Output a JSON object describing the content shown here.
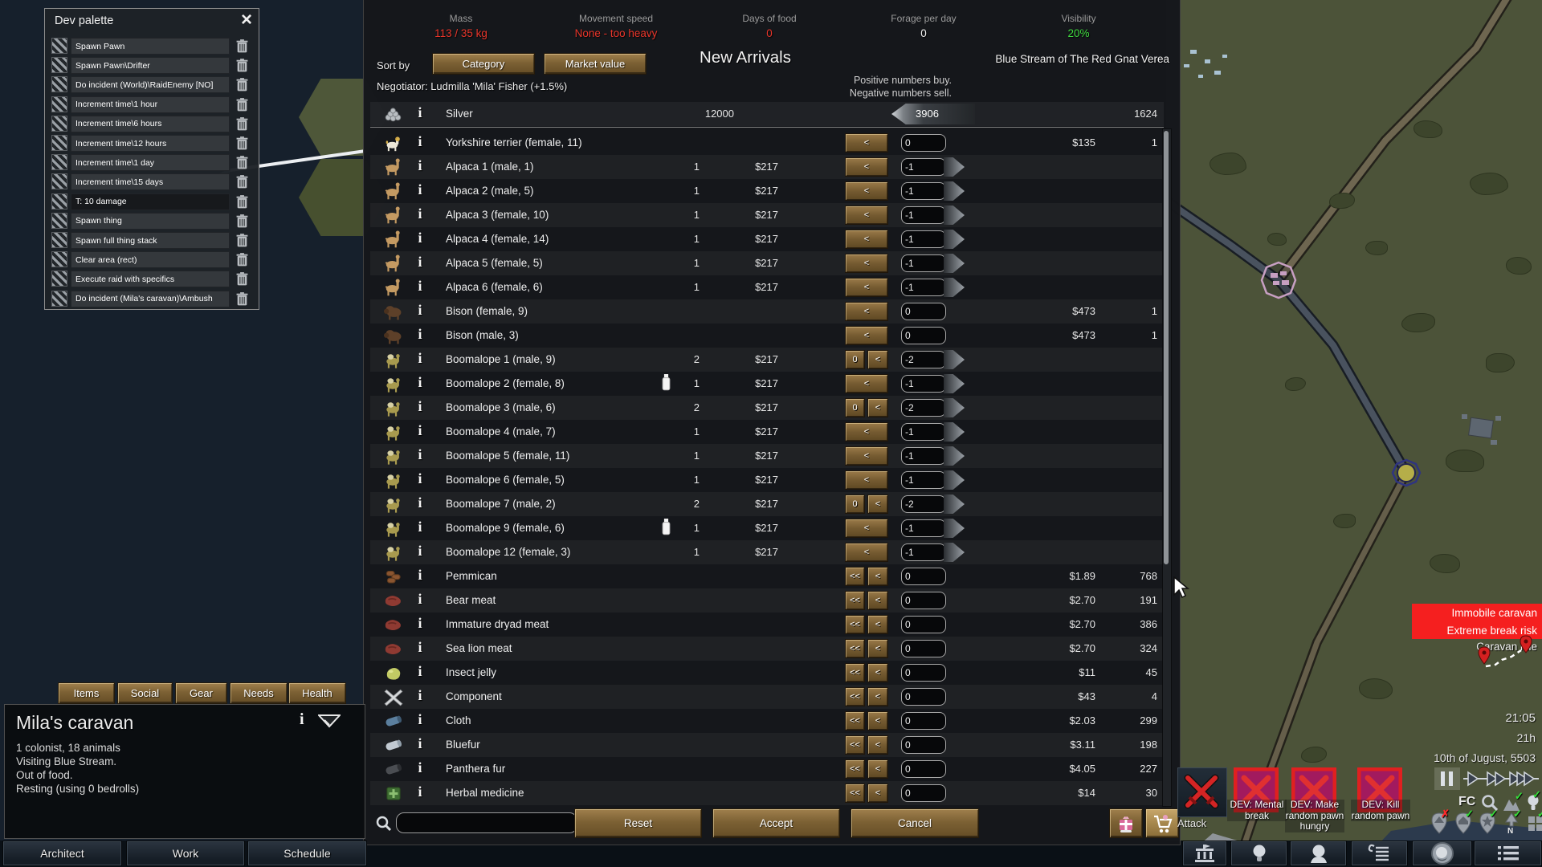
{
  "colors": {
    "red": "#e8352a",
    "green": "#3fd93f",
    "white": "#f0f0f0",
    "accent_brown": "#8a6d42",
    "devx_bg": "#a21a5e",
    "alert_red": "#f51f1f"
  },
  "dev_palette": {
    "title": "Dev palette",
    "close": "×",
    "items": [
      {
        "label": "Spawn Pawn",
        "dark": false
      },
      {
        "label": "Spawn Pawn\\Drifter",
        "dark": false
      },
      {
        "label": "Do incident (World)\\RaidEnemy [NO]",
        "dark": false
      },
      {
        "label": "Increment time\\1 hour",
        "dark": false
      },
      {
        "label": "Increment time\\6 hours",
        "dark": false
      },
      {
        "label": "Increment time\\12 hours",
        "dark": false
      },
      {
        "label": "Increment time\\1 day",
        "dark": false
      },
      {
        "label": "Increment time\\15 days",
        "dark": false
      },
      {
        "label": "T: 10 damage",
        "dark": true
      },
      {
        "label": "Spawn thing",
        "dark": false
      },
      {
        "label": "Spawn full thing stack",
        "dark": false
      },
      {
        "label": "Clear area (rect)",
        "dark": false
      },
      {
        "label": "Execute raid with specifics",
        "dark": false
      },
      {
        "label": "Do incident (Mila's caravan)\\Ambush",
        "dark": false
      }
    ]
  },
  "trade": {
    "stats": [
      {
        "label": "Mass",
        "value": "113 / 35 kg",
        "color": "red"
      },
      {
        "label": "Movement speed",
        "value": "None - too heavy",
        "color": "red"
      },
      {
        "label": "Days of food",
        "value": "0",
        "color": "red"
      },
      {
        "label": "Forage per day",
        "value": "0",
        "color": "white"
      },
      {
        "label": "Visibility",
        "value": "20%",
        "color": "green"
      }
    ],
    "sort_label": "Sort by",
    "sort_buttons": [
      "Category",
      "Market value"
    ],
    "title": "New Arrivals",
    "negotiator": "Negotiator: Ludmilla 'Mila' Fisher (+1.5%)",
    "hint_line1": "Positive numbers buy.",
    "hint_line2": "Negative numbers sell.",
    "faction": "Blue Stream of The Red Gnat Verea",
    "silver": {
      "name": "Silver",
      "stock": "12000",
      "amount": "3906",
      "owned": "1624"
    },
    "rows": [
      {
        "icon": "dog",
        "name": "Yorkshire terrier (female, 11)",
        "qty": "",
        "price": "",
        "buttons": [
          "<"
        ],
        "amount": "0",
        "arrow": false,
        "rprice": "$135",
        "rqty": "1",
        "milk": false
      },
      {
        "icon": "alpaca",
        "name": "Alpaca 1 (male, 1)",
        "qty": "1",
        "price": "$217",
        "buttons": [
          "<"
        ],
        "amount": "-1",
        "arrow": true,
        "rprice": "",
        "rqty": "",
        "milk": false
      },
      {
        "icon": "alpaca",
        "name": "Alpaca 2 (male, 5)",
        "qty": "1",
        "price": "$217",
        "buttons": [
          "<"
        ],
        "amount": "-1",
        "arrow": true,
        "rprice": "",
        "rqty": "",
        "milk": false
      },
      {
        "icon": "alpaca",
        "name": "Alpaca 3 (female, 10)",
        "qty": "1",
        "price": "$217",
        "buttons": [
          "<"
        ],
        "amount": "-1",
        "arrow": true,
        "rprice": "",
        "rqty": "",
        "milk": false
      },
      {
        "icon": "alpaca",
        "name": "Alpaca 4 (female, 14)",
        "qty": "1",
        "price": "$217",
        "buttons": [
          "<"
        ],
        "amount": "-1",
        "arrow": true,
        "rprice": "",
        "rqty": "",
        "milk": false
      },
      {
        "icon": "alpaca",
        "name": "Alpaca 5 (female, 5)",
        "qty": "1",
        "price": "$217",
        "buttons": [
          "<"
        ],
        "amount": "-1",
        "arrow": true,
        "rprice": "",
        "rqty": "",
        "milk": false
      },
      {
        "icon": "alpaca",
        "name": "Alpaca 6 (female, 6)",
        "qty": "1",
        "price": "$217",
        "buttons": [
          "<"
        ],
        "amount": "-1",
        "arrow": true,
        "rprice": "",
        "rqty": "",
        "milk": false
      },
      {
        "icon": "bison",
        "name": "Bison (female, 9)",
        "qty": "",
        "price": "",
        "buttons": [
          "<"
        ],
        "amount": "0",
        "arrow": false,
        "rprice": "$473",
        "rqty": "1",
        "milk": false
      },
      {
        "icon": "bison",
        "name": "Bison (male, 3)",
        "qty": "",
        "price": "",
        "buttons": [
          "<"
        ],
        "amount": "0",
        "arrow": false,
        "rprice": "$473",
        "rqty": "1",
        "milk": false
      },
      {
        "icon": "boomalope",
        "name": "Boomalope 1 (male, 9)",
        "qty": "2",
        "price": "$217",
        "buttons": [
          "0",
          "<"
        ],
        "amount": "-2",
        "arrow": true,
        "rprice": "",
        "rqty": "",
        "milk": false
      },
      {
        "icon": "boomalope",
        "name": "Boomalope 2 (female, 8)",
        "qty": "1",
        "price": "$217",
        "buttons": [
          "<"
        ],
        "amount": "-1",
        "arrow": true,
        "rprice": "",
        "rqty": "",
        "milk": true
      },
      {
        "icon": "boomalope",
        "name": "Boomalope 3 (male, 6)",
        "qty": "2",
        "price": "$217",
        "buttons": [
          "0",
          "<"
        ],
        "amount": "-2",
        "arrow": true,
        "rprice": "",
        "rqty": "",
        "milk": false
      },
      {
        "icon": "boomalope",
        "name": "Boomalope 4 (male, 7)",
        "qty": "1",
        "price": "$217",
        "buttons": [
          "<"
        ],
        "amount": "-1",
        "arrow": true,
        "rprice": "",
        "rqty": "",
        "milk": false
      },
      {
        "icon": "boomalope",
        "name": "Boomalope 5 (female, 11)",
        "qty": "1",
        "price": "$217",
        "buttons": [
          "<"
        ],
        "amount": "-1",
        "arrow": true,
        "rprice": "",
        "rqty": "",
        "milk": false
      },
      {
        "icon": "boomalope",
        "name": "Boomalope 6 (female, 5)",
        "qty": "1",
        "price": "$217",
        "buttons": [
          "<"
        ],
        "amount": "-1",
        "arrow": true,
        "rprice": "",
        "rqty": "",
        "milk": false
      },
      {
        "icon": "boomalope",
        "name": "Boomalope 7 (male, 2)",
        "qty": "2",
        "price": "$217",
        "buttons": [
          "0",
          "<"
        ],
        "amount": "-2",
        "arrow": true,
        "rprice": "",
        "rqty": "",
        "milk": false
      },
      {
        "icon": "boomalope",
        "name": "Boomalope 9 (female, 6)",
        "qty": "1",
        "price": "$217",
        "buttons": [
          "<"
        ],
        "amount": "-1",
        "arrow": true,
        "rprice": "",
        "rqty": "",
        "milk": true
      },
      {
        "icon": "boomalope",
        "name": "Boomalope 12 (female, 3)",
        "qty": "1",
        "price": "$217",
        "buttons": [
          "<"
        ],
        "amount": "-1",
        "arrow": true,
        "rprice": "",
        "rqty": "",
        "milk": false
      },
      {
        "icon": "pemmican",
        "name": "Pemmican",
        "qty": "",
        "price": "",
        "buttons": [
          "<<",
          "<"
        ],
        "amount": "0",
        "arrow": false,
        "rprice": "$1.89",
        "rqty": "768",
        "milk": false
      },
      {
        "icon": "meat",
        "name": "Bear meat",
        "qty": "",
        "price": "",
        "buttons": [
          "<<",
          "<"
        ],
        "amount": "0",
        "arrow": false,
        "rprice": "$2.70",
        "rqty": "191",
        "milk": false
      },
      {
        "icon": "meat",
        "name": "Immature dryad meat",
        "qty": "",
        "price": "",
        "buttons": [
          "<<",
          "<"
        ],
        "amount": "0",
        "arrow": false,
        "rprice": "$2.70",
        "rqty": "386",
        "milk": false
      },
      {
        "icon": "meat",
        "name": "Sea lion meat",
        "qty": "",
        "price": "",
        "buttons": [
          "<<",
          "<"
        ],
        "amount": "0",
        "arrow": false,
        "rprice": "$2.70",
        "rqty": "324",
        "milk": false
      },
      {
        "icon": "jelly",
        "name": "Insect jelly",
        "qty": "",
        "price": "",
        "buttons": [
          "<<",
          "<"
        ],
        "amount": "0",
        "arrow": false,
        "rprice": "$11",
        "rqty": "45",
        "milk": false
      },
      {
        "icon": "component",
        "name": "Component",
        "qty": "",
        "price": "",
        "buttons": [
          "<<",
          "<"
        ],
        "amount": "0",
        "arrow": false,
        "rprice": "$43",
        "rqty": "4",
        "milk": false
      },
      {
        "icon": "cloth",
        "name": "Cloth",
        "qty": "",
        "price": "",
        "buttons": [
          "<<",
          "<"
        ],
        "amount": "0",
        "arrow": false,
        "rprice": "$2.03",
        "rqty": "299",
        "milk": false
      },
      {
        "icon": "bluefur",
        "name": "Bluefur",
        "qty": "",
        "price": "",
        "buttons": [
          "<<",
          "<"
        ],
        "amount": "0",
        "arrow": false,
        "rprice": "$3.11",
        "rqty": "198",
        "milk": false
      },
      {
        "icon": "panthera",
        "name": "Panthera fur",
        "qty": "",
        "price": "",
        "buttons": [
          "<<",
          "<"
        ],
        "amount": "0",
        "arrow": false,
        "rprice": "$4.05",
        "rqty": "227",
        "milk": false
      },
      {
        "icon": "herbal",
        "name": "Herbal medicine",
        "qty": "",
        "price": "",
        "buttons": [
          "<<",
          "<"
        ],
        "amount": "0",
        "arrow": false,
        "rprice": "$14",
        "rqty": "30",
        "milk": false
      }
    ],
    "footer": {
      "search_value": "",
      "reset": "Reset",
      "accept": "Accept",
      "cancel": "Cancel"
    }
  },
  "caravan": {
    "tabs": [
      "Items",
      "Social",
      "Gear",
      "Needs",
      "Health"
    ],
    "title": "Mila's caravan",
    "lines": [
      "1 colonist, 18 animals",
      "Visiting Blue Stream.",
      "Out of food.",
      "Resting (using 0 bedrolls)"
    ]
  },
  "bottom_bar": {
    "left_buttons": [
      "Architect",
      "Work",
      "Schedule"
    ],
    "right_icons": [
      "building-icon",
      "bulb-icon",
      "head-icon",
      "quest-list-icon",
      "portrait-icon",
      "menu-icon"
    ]
  },
  "overlay": {
    "alerts": [
      "Immobile caravan",
      "Extreme break risk"
    ],
    "idle": "Caravan idle",
    "clock": "21:05",
    "rest": "21h",
    "date": "10th of Jugust, 5503",
    "fc_label": "FC"
  },
  "dev_buttons": [
    {
      "label": "Attack",
      "type": "attack"
    },
    {
      "label": "DEV: Mental break",
      "type": "devx"
    },
    {
      "label": "DEV: Make random pawn hungry",
      "type": "devx"
    },
    {
      "label": "DEV: Kill random pawn",
      "type": "devx"
    }
  ]
}
